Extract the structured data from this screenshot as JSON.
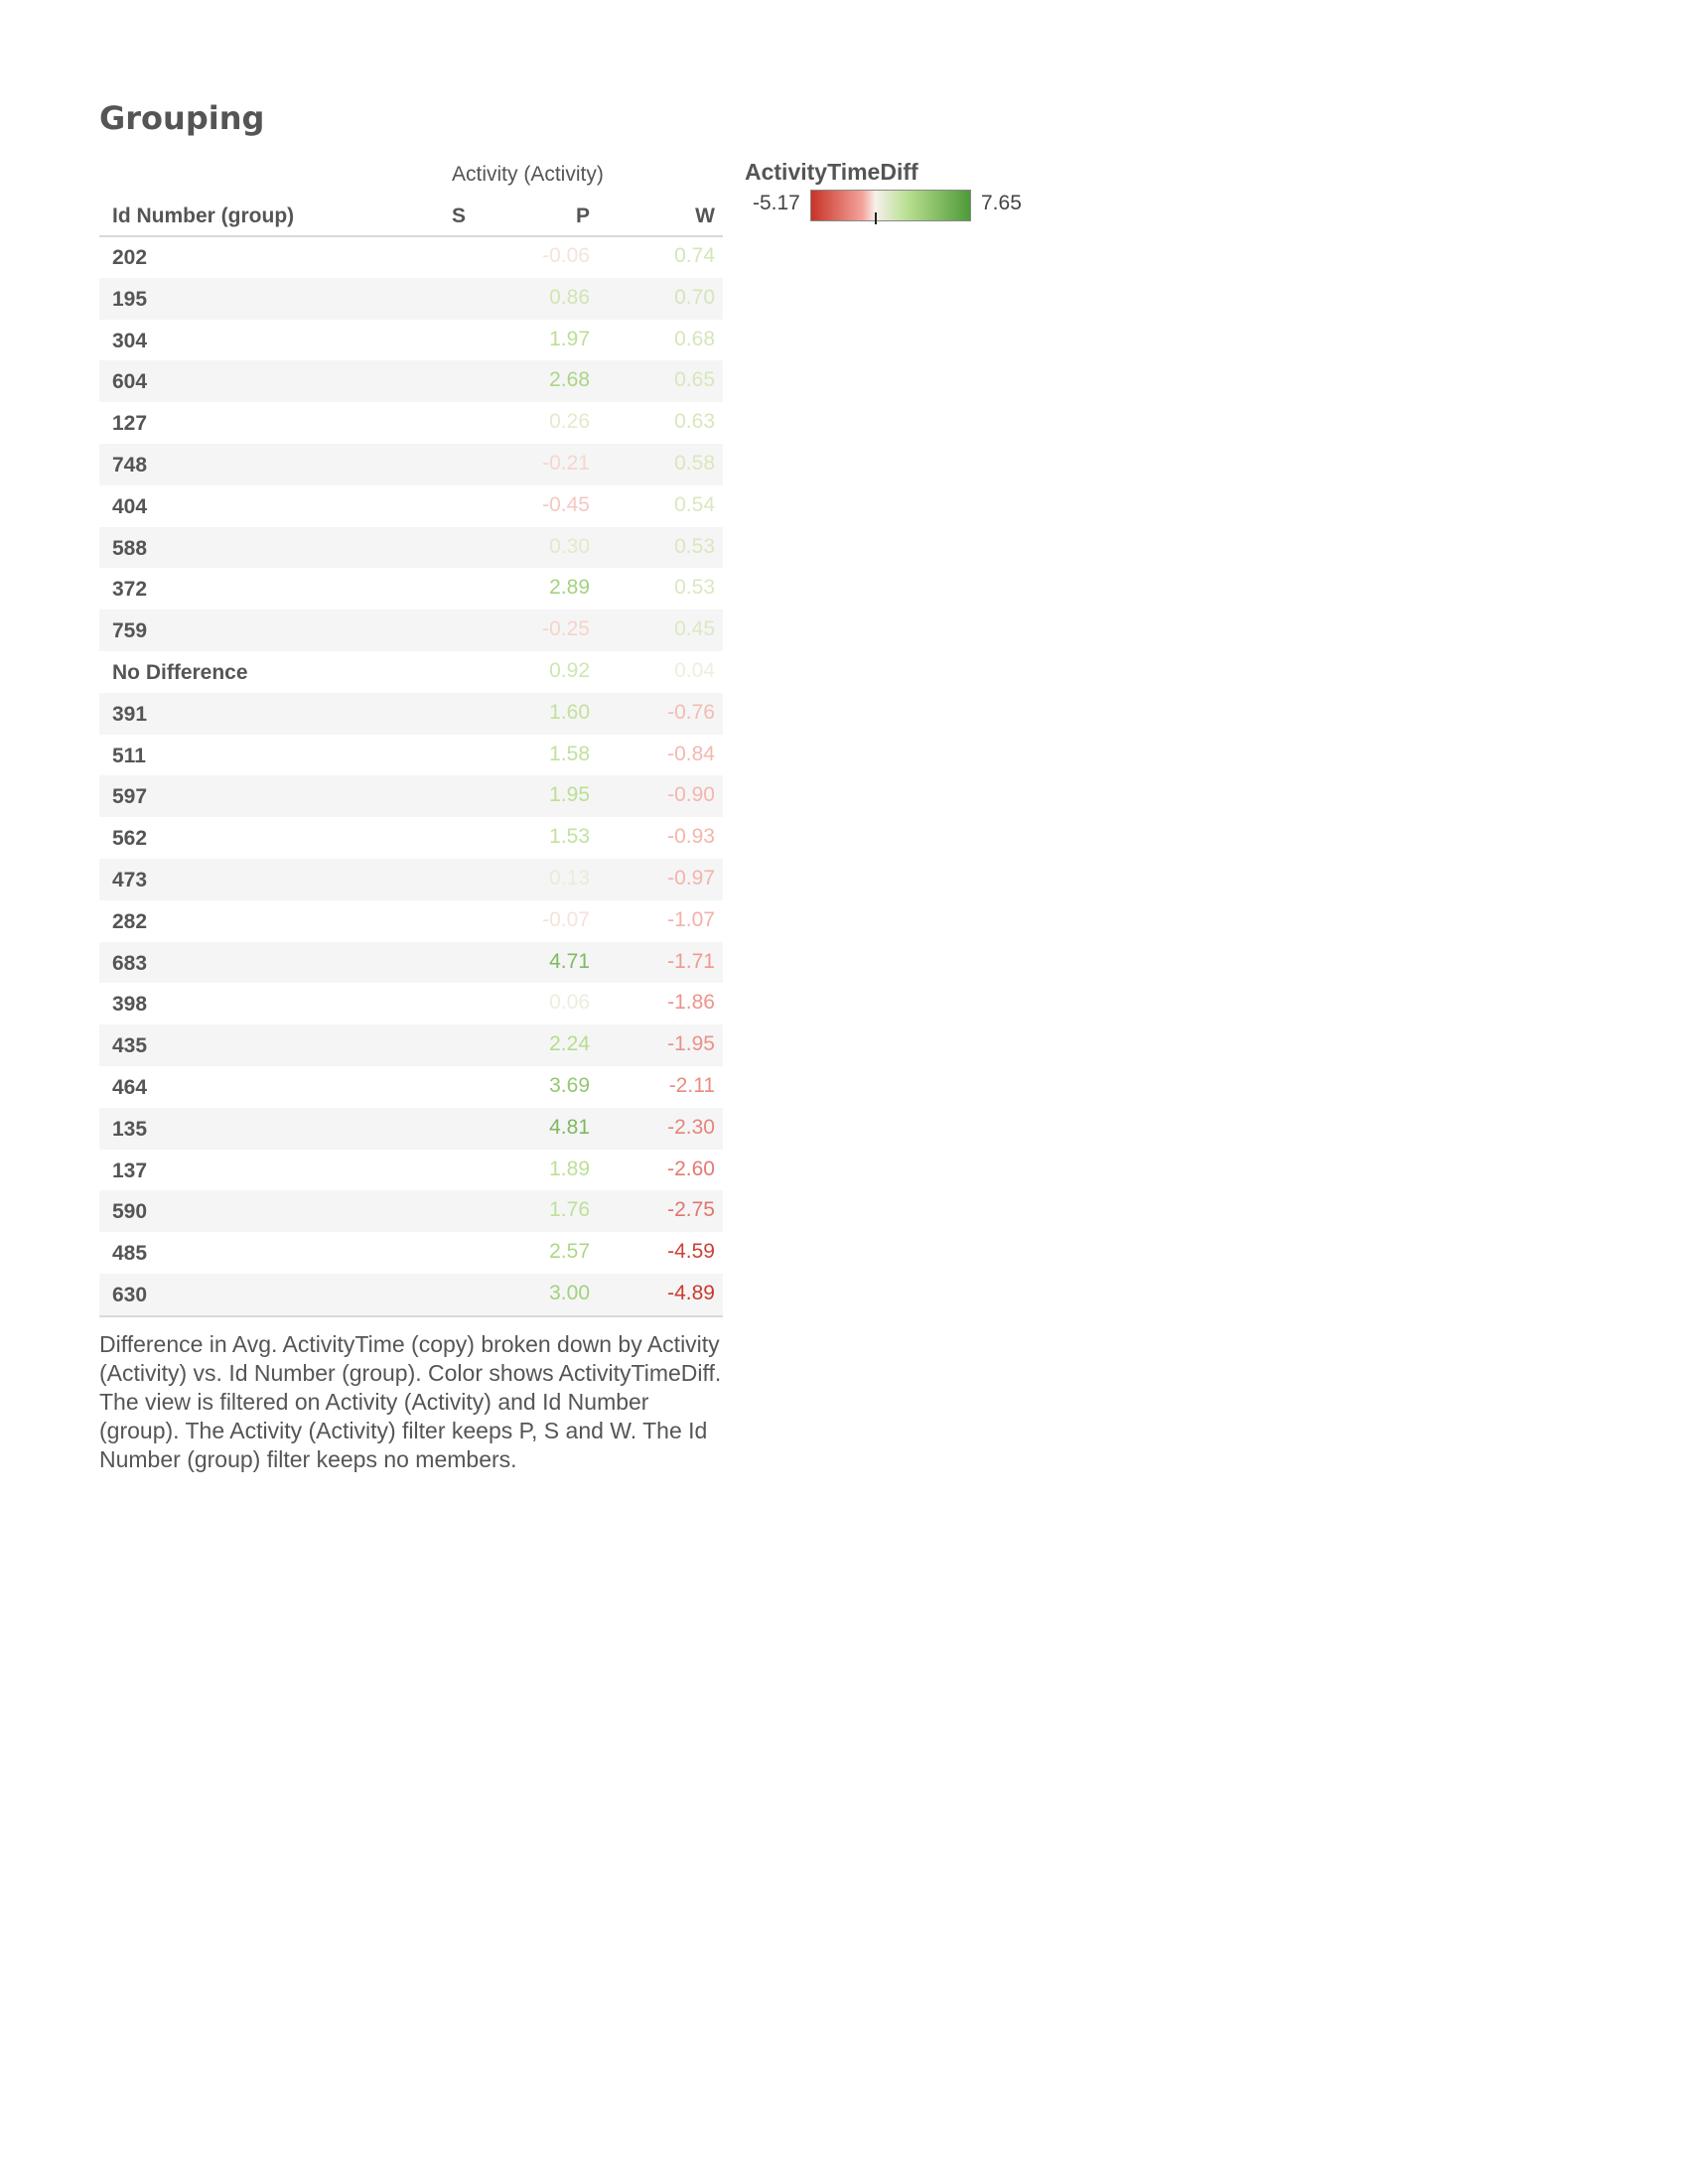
{
  "title": "Grouping",
  "chart_data": {
    "type": "table",
    "column_group_label": "Activity (Activity)",
    "row_header": "Id Number (group)",
    "columns": [
      "S",
      "P",
      "W"
    ],
    "rows": [
      {
        "id": "202",
        "S": null,
        "P": "-0.06",
        "W": "0.74"
      },
      {
        "id": "195",
        "S": null,
        "P": "0.86",
        "W": "0.70"
      },
      {
        "id": "304",
        "S": null,
        "P": "1.97",
        "W": "0.68"
      },
      {
        "id": "604",
        "S": null,
        "P": "2.68",
        "W": "0.65"
      },
      {
        "id": "127",
        "S": null,
        "P": "0.26",
        "W": "0.63"
      },
      {
        "id": "748",
        "S": null,
        "P": "-0.21",
        "W": "0.58"
      },
      {
        "id": "404",
        "S": null,
        "P": "-0.45",
        "W": "0.54"
      },
      {
        "id": "588",
        "S": null,
        "P": "0.30",
        "W": "0.53"
      },
      {
        "id": "372",
        "S": null,
        "P": "2.89",
        "W": "0.53"
      },
      {
        "id": "759",
        "S": null,
        "P": "-0.25",
        "W": "0.45"
      },
      {
        "id": "No Difference",
        "S": null,
        "P": "0.92",
        "W": "0.04"
      },
      {
        "id": "391",
        "S": null,
        "P": "1.60",
        "W": "-0.76"
      },
      {
        "id": "511",
        "S": null,
        "P": "1.58",
        "W": "-0.84"
      },
      {
        "id": "597",
        "S": null,
        "P": "1.95",
        "W": "-0.90"
      },
      {
        "id": "562",
        "S": null,
        "P": "1.53",
        "W": "-0.93"
      },
      {
        "id": "473",
        "S": null,
        "P": "0.13",
        "W": "-0.97"
      },
      {
        "id": "282",
        "S": null,
        "P": "-0.07",
        "W": "-1.07"
      },
      {
        "id": "683",
        "S": null,
        "P": "4.71",
        "W": "-1.71"
      },
      {
        "id": "398",
        "S": null,
        "P": "0.06",
        "W": "-1.86"
      },
      {
        "id": "435",
        "S": null,
        "P": "2.24",
        "W": "-1.95"
      },
      {
        "id": "464",
        "S": null,
        "P": "3.69",
        "W": "-2.11"
      },
      {
        "id": "135",
        "S": null,
        "P": "4.81",
        "W": "-2.30"
      },
      {
        "id": "137",
        "S": null,
        "P": "1.89",
        "W": "-2.60"
      },
      {
        "id": "590",
        "S": null,
        "P": "1.76",
        "W": "-2.75"
      },
      {
        "id": "485",
        "S": null,
        "P": "2.57",
        "W": "-4.59"
      },
      {
        "id": "630",
        "S": null,
        "P": "3.00",
        "W": "-4.89"
      }
    ],
    "color_legend": {
      "title": "ActivityTimeDiff",
      "min_label": "-5.17",
      "max_label": "7.65",
      "min": -5.17,
      "max": 7.65,
      "colors": [
        "#c83226",
        "#f3a49b",
        "#f6f0ea",
        "#b7de8f",
        "#4e9a38"
      ]
    }
  },
  "caption": "Difference in Avg. ActivityTime (copy) broken down by Activity (Activity) vs. Id Number (group).  Color shows ActivityTimeDiff. The view is filtered on Activity (Activity) and Id Number (group). The Activity (Activity) filter keeps P, S and W. The Id Number (group) filter keeps no members."
}
